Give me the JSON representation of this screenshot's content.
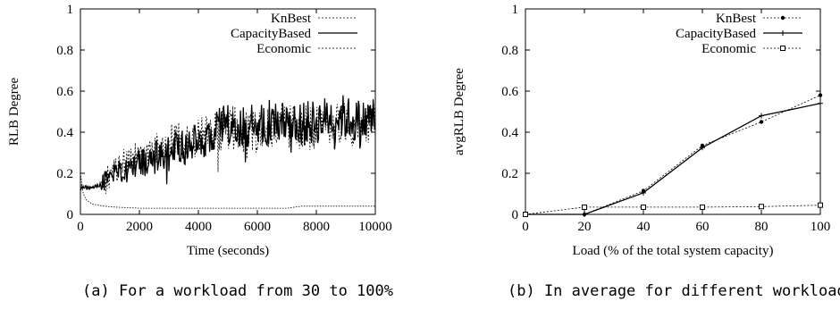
{
  "chart_data": [
    {
      "type": "line",
      "xlabel": "Time (seconds)",
      "ylabel": "RLB Degree",
      "xlim": [
        0,
        10000
      ],
      "ylim": [
        0,
        1
      ],
      "xticks": [
        0,
        2000,
        4000,
        6000,
        8000,
        10000
      ],
      "yticks": [
        0,
        0.2,
        0.4,
        0.6,
        0.8,
        1
      ],
      "legend_position": "top-right",
      "caption": "(a) For a workload from 30 to 100%",
      "series": [
        {
          "name": "KnBest",
          "style": "dotted",
          "x": [
            0,
            400,
            800,
            1200,
            1600,
            2000,
            2400,
            2800,
            3200,
            3600,
            4000,
            4400,
            4800,
            5200,
            5600,
            6000,
            6400,
            6800,
            7200,
            7600,
            8000,
            8400,
            8800,
            9200,
            9600,
            10000
          ],
          "y": [
            0.14,
            0.13,
            0.16,
            0.22,
            0.27,
            0.29,
            0.3,
            0.33,
            0.36,
            0.36,
            0.38,
            0.4,
            0.42,
            0.42,
            0.4,
            0.41,
            0.43,
            0.44,
            0.43,
            0.42,
            0.42,
            0.44,
            0.45,
            0.44,
            0.42,
            0.46
          ]
        },
        {
          "name": "CapacityBased",
          "style": "solid",
          "x": [
            0,
            400,
            800,
            1200,
            1600,
            2000,
            2400,
            2800,
            3200,
            3600,
            4000,
            4400,
            4800,
            5200,
            5600,
            6000,
            6400,
            6800,
            7200,
            7600,
            8000,
            8400,
            8800,
            9200,
            9600,
            10000
          ],
          "y": [
            0.13,
            0.13,
            0.15,
            0.19,
            0.22,
            0.25,
            0.27,
            0.29,
            0.32,
            0.33,
            0.36,
            0.38,
            0.42,
            0.44,
            0.43,
            0.42,
            0.45,
            0.46,
            0.45,
            0.44,
            0.45,
            0.47,
            0.48,
            0.46,
            0.45,
            0.48
          ]
        },
        {
          "name": "Economic",
          "style": "dotted-thin",
          "x": [
            0,
            100,
            200,
            400,
            800,
            1200,
            2000,
            3000,
            4000,
            5000,
            6000,
            7000,
            7500,
            8000,
            9000,
            10000
          ],
          "y": [
            0.2,
            0.1,
            0.07,
            0.05,
            0.04,
            0.035,
            0.03,
            0.03,
            0.03,
            0.03,
            0.03,
            0.03,
            0.04,
            0.04,
            0.04,
            0.04
          ]
        }
      ]
    },
    {
      "type": "line",
      "xlabel": "Load (% of the total system capacity)",
      "ylabel": "avgRLB Degree",
      "xlim": [
        0,
        100
      ],
      "ylim": [
        0,
        1
      ],
      "xticks": [
        0,
        20,
        40,
        60,
        80,
        100
      ],
      "yticks": [
        0,
        0.2,
        0.4,
        0.6,
        0.8,
        1
      ],
      "legend_position": "top-right",
      "caption": "(b) In average for different workloads",
      "series": [
        {
          "name": "KnBest",
          "style": "dotted",
          "marker": "dot",
          "x": [
            0,
            20,
            40,
            60,
            80,
            100
          ],
          "y": [
            0,
            0,
            0.115,
            0.335,
            0.45,
            0.58
          ]
        },
        {
          "name": "CapacityBased",
          "style": "solid",
          "marker": "plus",
          "x": [
            0,
            20,
            40,
            60,
            80,
            100
          ],
          "y": [
            0,
            0,
            0.105,
            0.325,
            0.48,
            0.54
          ]
        },
        {
          "name": "Economic",
          "style": "dotted",
          "marker": "square",
          "x": [
            0,
            20,
            40,
            60,
            80,
            100
          ],
          "y": [
            0,
            0.035,
            0.035,
            0.035,
            0.038,
            0.045
          ]
        }
      ]
    }
  ]
}
